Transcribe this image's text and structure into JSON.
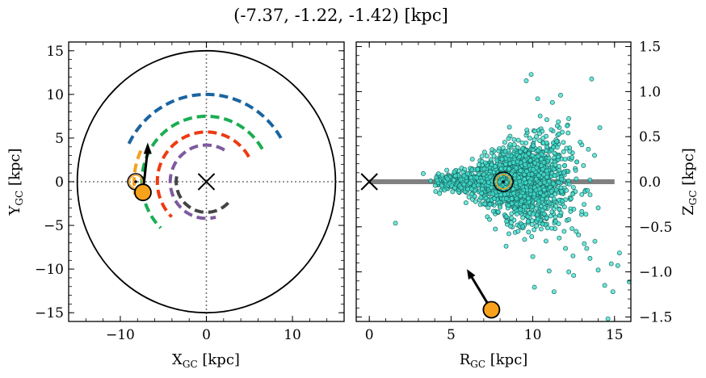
{
  "chart_data": [
    {
      "type": "line",
      "title": "(-7.37, -1.22, -1.42) [kpc]",
      "xlabel_main": "X",
      "xlabel_sub": "GC",
      "xlabel_unit": " [kpc]",
      "ylabel_main": "Y",
      "ylabel_sub": "GC",
      "ylabel_unit": " [kpc]",
      "xlim": [
        -16,
        16
      ],
      "ylim": [
        -16,
        16
      ],
      "xticks": [
        {
          "v": -10,
          "label": "−10"
        },
        {
          "v": 0,
          "label": "0"
        },
        {
          "v": 10,
          "label": "10"
        }
      ],
      "yticks": [
        {
          "v": 15,
          "label": "15"
        },
        {
          "v": 10,
          "label": "10"
        },
        {
          "v": 5,
          "label": "5"
        },
        {
          "v": 0,
          "label": "0"
        },
        {
          "v": -5,
          "label": "−5"
        },
        {
          "v": -10,
          "label": "−10"
        },
        {
          "v": -15,
          "label": "−15"
        }
      ],
      "galaxy_circle_radius": 15,
      "spiral_arms": [
        {
          "color": "#1a64a0",
          "radius": 10.0,
          "theta_start": 30,
          "theta_end": 155
        },
        {
          "color": "#1aad52",
          "radius": 7.5,
          "theta_start": 30,
          "theta_end": 225
        },
        {
          "color": "#f5a11f",
          "radius": 8.4,
          "theta_start": 155,
          "theta_end": 190
        },
        {
          "color": "#ee3a12",
          "radius": 5.7,
          "theta_start": 30,
          "theta_end": 225
        },
        {
          "color": "#7e5a9e",
          "radius": 4.2,
          "theta_start": 60,
          "theta_end": 285
        },
        {
          "color": "#444444",
          "radius": 3.5,
          "theta_start": 170,
          "theta_end": 320
        }
      ],
      "sun": {
        "x": -8.2,
        "y": 0.0
      },
      "object": {
        "x": -7.37,
        "y": -1.22,
        "vx": 0.55,
        "vy": 5.7
      },
      "galactic_center": {
        "x": 0,
        "y": 0
      }
    },
    {
      "type": "scatter",
      "xlabel_main": "R",
      "xlabel_sub": "GC",
      "xlabel_unit": " [kpc]",
      "ylabel_main": "Z",
      "ylabel_sub": "GC",
      "ylabel_unit": " [kpc]",
      "xlim": [
        -0.8,
        16
      ],
      "ylim": [
        -1.55,
        1.55
      ],
      "xticks": [
        {
          "v": 0,
          "label": "0"
        },
        {
          "v": 5,
          "label": "5"
        },
        {
          "v": 10,
          "label": "10"
        },
        {
          "v": 15,
          "label": "15"
        }
      ],
      "yticks": [
        {
          "v": 1.5,
          "label": "1.5"
        },
        {
          "v": 1.0,
          "label": "1.0"
        },
        {
          "v": 0.5,
          "label": "0.5"
        },
        {
          "v": 0.0,
          "label": "0.0"
        },
        {
          "v": -0.5,
          "label": "−0.5"
        },
        {
          "v": -1.0,
          "label": "−1.0"
        },
        {
          "v": -1.5,
          "label": "−1.5"
        }
      ],
      "disk_line": {
        "x0": 0,
        "x1": 15,
        "z": 0
      },
      "sun": {
        "r": 8.2,
        "z": 0.0
      },
      "object": {
        "r": 7.47,
        "z": -1.42,
        "vr": -1.5,
        "vz": 0.45
      },
      "galactic_center": {
        "r": 0,
        "z": 0
      },
      "outliers": [
        [
          9.9,
          1.19
        ],
        [
          9.6,
          1.12
        ],
        [
          11.2,
          0.88
        ],
        [
          13.6,
          1.14
        ],
        [
          10.3,
          0.92
        ],
        [
          12.2,
          0.7
        ],
        [
          11.8,
          0.55
        ],
        [
          14.1,
          0.6
        ],
        [
          13.4,
          0.36
        ],
        [
          12.9,
          0.44
        ],
        [
          1.6,
          -0.46
        ],
        [
          3.3,
          0.09
        ],
        [
          4.3,
          -0.13
        ],
        [
          9.5,
          -0.64
        ],
        [
          10.1,
          -1.17
        ],
        [
          11.3,
          -1.22
        ],
        [
          14.8,
          -0.91
        ],
        [
          15.2,
          -0.93
        ],
        [
          15.9,
          -1.11
        ],
        [
          14.9,
          -1.22
        ],
        [
          14.4,
          -1.15
        ],
        [
          14.0,
          -0.98
        ],
        [
          13.3,
          -0.74
        ],
        [
          13.8,
          -0.66
        ],
        [
          12.5,
          -1.04
        ],
        [
          12.2,
          -1.0
        ],
        [
          11.0,
          -0.99
        ],
        [
          12.8,
          -0.59
        ],
        [
          13.0,
          -0.33
        ],
        [
          12.0,
          -0.74
        ],
        [
          11.4,
          -0.44
        ],
        [
          10.6,
          -0.47
        ],
        [
          15.3,
          -0.79
        ],
        [
          14.6,
          -1.52
        ],
        [
          13.5,
          -0.85
        ],
        [
          9.1,
          -0.55
        ],
        [
          8.4,
          -0.44
        ],
        [
          6.5,
          -0.22
        ],
        [
          5.2,
          0.11
        ],
        [
          6.3,
          0.25
        ],
        [
          7.1,
          0.21
        ],
        [
          11.7,
          0.96
        ],
        [
          12.7,
          0.22
        ],
        [
          13.5,
          0.02
        ],
        [
          14.0,
          -0.29
        ],
        [
          12.4,
          -0.52
        ],
        [
          10.0,
          -0.83
        ],
        [
          12.2,
          -0.42
        ],
        [
          13.1,
          0.18
        ],
        [
          11.5,
          0.62
        ]
      ]
    }
  ]
}
